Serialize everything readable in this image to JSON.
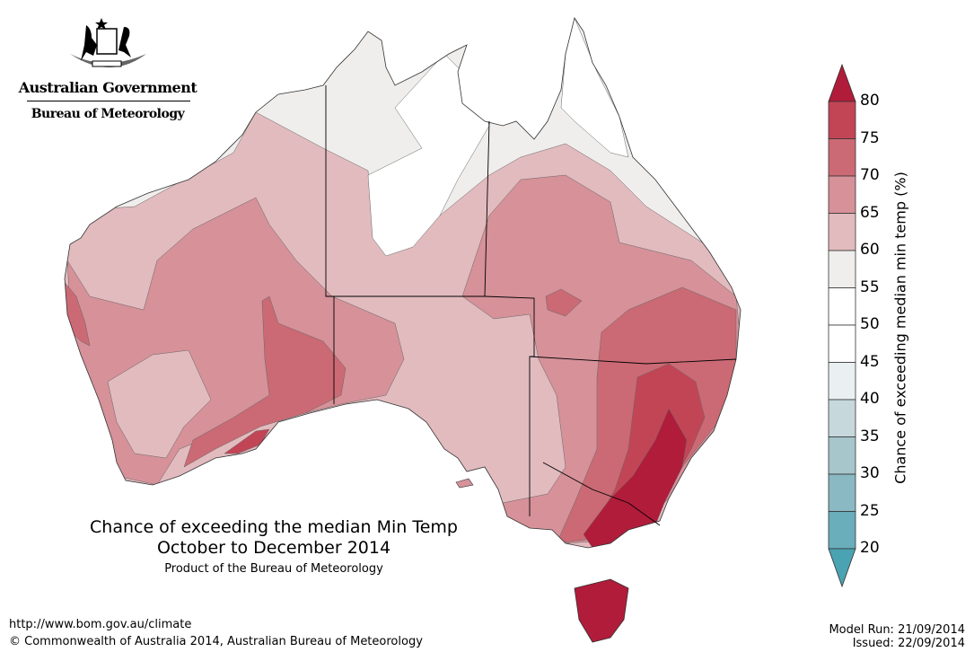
{
  "header": {
    "logo_line1": "Australian Government",
    "logo_line2": "Bureau of Meteorology"
  },
  "map": {
    "title_line1": "Chance of exceeding the median Min Temp",
    "title_line2": "October to December 2014",
    "product_note": "Product of the Bureau of Meteorology"
  },
  "legend": {
    "label": "Chance of exceeding median min temp (%)",
    "ticks": [
      "80",
      "75",
      "70",
      "65",
      "60",
      "55",
      "50",
      "45",
      "40",
      "35",
      "30",
      "25",
      "20"
    ],
    "colors": {
      "gt80": "#b11c3a",
      "75_80": "#c24556",
      "70_75": "#cb6a74",
      "65_70": "#d69199",
      "60_65": "#e2bbbf",
      "55_60": "#efeeec",
      "50_55": "#ffffff",
      "45_50": "#ffffff",
      "40_45": "#eaeff1",
      "35_40": "#c6d8dc",
      "30_35": "#a7c6cb",
      "25_30": "#8ab8c3",
      "20_25": "#6aadbb",
      "lt20": "#4aa3b3"
    }
  },
  "footer": {
    "url": "http://www.bom.gov.au/climate",
    "copyright": "© Commonwealth of Australia 2014, Australian Bureau of Meteorology",
    "model_run": "Model Run: 21/09/2014",
    "issued": "Issued: 22/09/2014"
  }
}
